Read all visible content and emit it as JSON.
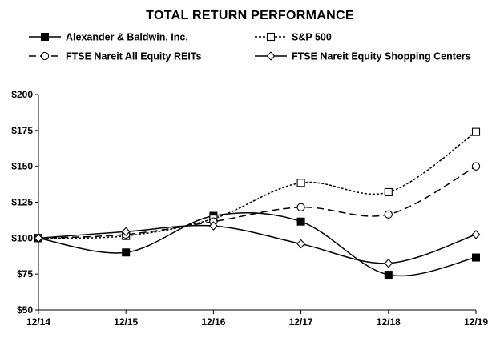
{
  "chart_data": {
    "type": "line",
    "title": "TOTAL RETURN PERFORMANCE",
    "categories": [
      "12/14",
      "12/15",
      "12/16",
      "12/17",
      "12/18",
      "12/19"
    ],
    "ylim": [
      50,
      200
    ],
    "yticks": [
      50,
      75,
      100,
      125,
      150,
      175,
      200
    ],
    "ytick_labels": [
      "$50",
      "$75",
      "$100",
      "$125",
      "$150",
      "$175",
      "$200"
    ],
    "grid": false,
    "legend_placement": "top",
    "series": [
      {
        "name": "Alexander & Baldwin, Inc.",
        "values": [
          100,
          90,
          115.5,
          111.5,
          74.5,
          86.5
        ],
        "marker": "filled-square",
        "line": "solid",
        "color": "#000000"
      },
      {
        "name": "S&P 500",
        "values": [
          100,
          101.5,
          113.5,
          138.5,
          132,
          174
        ],
        "marker": "open-square",
        "line": "dotted",
        "color": "#000000"
      },
      {
        "name": "FTSE Nareit All Equity REITs",
        "values": [
          100,
          102.5,
          111.5,
          121.5,
          116.5,
          150
        ],
        "marker": "open-circle",
        "line": "dashed",
        "color": "#000000"
      },
      {
        "name": "FTSE Nareit Equity Shopping Centers",
        "values": [
          100,
          104.5,
          108.5,
          96,
          82.5,
          102.5
        ],
        "marker": "open-diamond",
        "line": "solid",
        "color": "#000000"
      }
    ]
  }
}
